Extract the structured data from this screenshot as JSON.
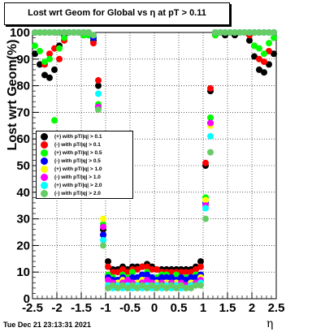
{
  "title": "Lost wrt Geom for Global vs  η at pT > 0.11",
  "timestamp": "Tue Dec 21 23:13:31 2021",
  "chart_data": {
    "type": "scatter",
    "title": "Lost wrt Geom for Global vs  η at pT > 0.11",
    "xlabel": "η",
    "ylabel": "Lost wrt Geom(%)",
    "xlim": [
      -2.5,
      2.5
    ],
    "ylim": [
      0,
      100
    ],
    "x_ticks": [
      "-2.5",
      "-2",
      "-1.5",
      "-1",
      "-0.5",
      "0",
      "0.5",
      "1",
      "1.5",
      "2",
      "2.5"
    ],
    "y_ticks": [
      "0",
      "10",
      "20",
      "30",
      "40",
      "50",
      "60",
      "70",
      "80",
      "90",
      "100"
    ],
    "grid": true,
    "legend_position": "left-middle",
    "series": [
      {
        "name": "(+) with pT/|q| > 0.1",
        "color": "#000000",
        "x": [
          -2.45,
          -2.35,
          -2.25,
          -2.15,
          -2.05,
          -1.95,
          -1.85,
          -1.75,
          -1.65,
          -1.55,
          -1.45,
          -1.35,
          -1.25,
          -1.15,
          -1.05,
          -0.95,
          -0.85,
          -0.75,
          -0.65,
          -0.55,
          -0.45,
          -0.35,
          -0.25,
          -0.15,
          -0.05,
          0.05,
          0.15,
          0.25,
          0.35,
          0.45,
          0.55,
          0.65,
          0.75,
          0.85,
          0.95,
          1.05,
          1.15,
          1.25,
          1.35,
          1.45,
          1.55,
          1.65,
          1.75,
          1.85,
          1.95,
          2.05,
          2.15,
          2.25,
          2.35,
          2.45
        ],
        "values": [
          92,
          88,
          84,
          83,
          86,
          95,
          99,
          100,
          100,
          100,
          99,
          100,
          97,
          80,
          26,
          14,
          11,
          11,
          12,
          11,
          12,
          12,
          12,
          13,
          12,
          11,
          11,
          11,
          11,
          11,
          11,
          11,
          11,
          12,
          14,
          50,
          78,
          100,
          100,
          99,
          100,
          99,
          100,
          100,
          97,
          91,
          86,
          85,
          88,
          92
        ]
      },
      {
        "name": "(-) with pT/|q| > 0.1",
        "color": "#ff0000",
        "x": [
          -2.45,
          -2.35,
          -2.25,
          -2.15,
          -2.05,
          -1.95,
          -1.85,
          -1.75,
          -1.65,
          -1.55,
          -1.45,
          -1.35,
          -1.25,
          -1.15,
          -1.05,
          -0.95,
          -0.85,
          -0.75,
          -0.65,
          -0.55,
          -0.45,
          -0.35,
          -0.25,
          -0.15,
          -0.05,
          0.05,
          0.15,
          0.25,
          0.35,
          0.45,
          0.55,
          0.65,
          0.75,
          0.85,
          0.95,
          1.05,
          1.15,
          1.25,
          1.35,
          1.45,
          1.55,
          1.65,
          1.75,
          1.85,
          1.95,
          2.05,
          2.15,
          2.25,
          2.35,
          2.45
        ],
        "values": [
          100,
          100,
          88,
          92,
          94,
          90,
          97,
          100,
          100,
          100,
          100,
          99,
          96,
          82,
          24,
          12,
          10,
          10,
          11,
          10,
          11,
          11,
          12,
          12,
          11,
          11,
          10,
          10,
          10,
          10,
          10,
          10,
          10,
          11,
          12,
          51,
          79,
          99,
          100,
          100,
          100,
          100,
          100,
          100,
          99,
          95,
          90,
          89,
          93,
          100
        ]
      },
      {
        "name": "(+) with pT/|q| > 0.5",
        "color": "#00ff00",
        "x": [
          -2.45,
          -2.35,
          -2.25,
          -2.15,
          -2.05,
          -1.95,
          -1.85,
          -1.75,
          -1.65,
          -1.55,
          -1.45,
          -1.35,
          -1.25,
          -1.15,
          -1.05,
          -0.95,
          -0.85,
          -0.75,
          -0.65,
          -0.55,
          -0.45,
          -0.35,
          -0.25,
          -0.15,
          -0.05,
          0.05,
          0.15,
          0.25,
          0.35,
          0.45,
          0.55,
          0.65,
          0.75,
          0.85,
          0.95,
          1.05,
          1.15,
          1.25,
          1.35,
          1.45,
          1.55,
          1.65,
          1.75,
          1.85,
          1.95,
          2.05,
          2.15,
          2.25,
          2.35,
          2.45
        ],
        "values": [
          95,
          93,
          89,
          90,
          67,
          94,
          98,
          100,
          100,
          100,
          99,
          99,
          98,
          73,
          28,
          9,
          8,
          7,
          9,
          8,
          10,
          8,
          9,
          10,
          8,
          8,
          9,
          9,
          8,
          9,
          8,
          8,
          8,
          9,
          9,
          38,
          68,
          99,
          100,
          100,
          100,
          100,
          100,
          100,
          100,
          95,
          94,
          92,
          96,
          98
        ]
      },
      {
        "name": "(-) with pT/|q| > 0.5",
        "color": "#0000ff",
        "x": [
          -2.45,
          -2.35,
          -2.25,
          -2.15,
          -2.05,
          -1.95,
          -1.85,
          -1.75,
          -1.65,
          -1.55,
          -1.45,
          -1.35,
          -1.25,
          -1.15,
          -1.05,
          -0.95,
          -0.85,
          -0.75,
          -0.65,
          -0.55,
          -0.45,
          -0.35,
          -0.25,
          -0.15,
          -0.05,
          0.05,
          0.15,
          0.25,
          0.35,
          0.45,
          0.55,
          0.65,
          0.75,
          0.85,
          0.95,
          1.05,
          1.15,
          1.25,
          1.35,
          1.45,
          1.55,
          1.65,
          1.75,
          1.85,
          1.95,
          2.05,
          2.15,
          2.25,
          2.35,
          2.45
        ],
        "values": [
          100,
          100,
          100,
          100,
          100,
          100,
          100,
          100,
          100,
          100,
          100,
          100,
          98,
          72,
          24,
          8,
          7,
          7,
          8,
          7,
          8,
          8,
          9,
          9,
          8,
          7,
          8,
          8,
          8,
          7,
          8,
          7,
          8,
          8,
          9,
          36,
          66,
          100,
          100,
          100,
          100,
          100,
          100,
          100,
          100,
          100,
          100,
          100,
          100,
          100
        ]
      },
      {
        "name": "(+) with pT/|q| > 1.0",
        "color": "#ffff00",
        "x": [
          -2.45,
          -2.35,
          -2.25,
          -2.15,
          -2.05,
          -1.95,
          -1.85,
          -1.75,
          -1.65,
          -1.55,
          -1.45,
          -1.35,
          -1.25,
          -1.15,
          -1.05,
          -0.95,
          -0.85,
          -0.75,
          -0.65,
          -0.55,
          -0.45,
          -0.35,
          -0.25,
          -0.15,
          -0.05,
          0.05,
          0.15,
          0.25,
          0.35,
          0.45,
          0.55,
          0.65,
          0.75,
          0.85,
          0.95,
          1.05,
          1.15,
          1.25,
          1.35,
          1.45,
          1.55,
          1.65,
          1.75,
          1.85,
          1.95,
          2.05,
          2.15,
          2.25,
          2.35,
          2.45
        ],
        "values": [
          100,
          100,
          100,
          100,
          100,
          100,
          100,
          100,
          100,
          100,
          100,
          100,
          99,
          71,
          30,
          6,
          5,
          6,
          7,
          6,
          5,
          6,
          7,
          6,
          5,
          6,
          5,
          6,
          5,
          6,
          5,
          5,
          6,
          6,
          8,
          37,
          65,
          100,
          100,
          100,
          100,
          100,
          100,
          100,
          100,
          100,
          100,
          100,
          100,
          100
        ]
      },
      {
        "name": "(-) with pT/|q| > 1.0",
        "color": "#ff00ff",
        "x": [
          -2.45,
          -2.35,
          -2.25,
          -2.15,
          -2.05,
          -1.95,
          -1.85,
          -1.75,
          -1.65,
          -1.55,
          -1.45,
          -1.35,
          -1.25,
          -1.15,
          -1.05,
          -0.95,
          -0.85,
          -0.75,
          -0.65,
          -0.55,
          -0.45,
          -0.35,
          -0.25,
          -0.15,
          -0.05,
          0.05,
          0.15,
          0.25,
          0.35,
          0.45,
          0.55,
          0.65,
          0.75,
          0.85,
          0.95,
          1.05,
          1.15,
          1.25,
          1.35,
          1.45,
          1.55,
          1.65,
          1.75,
          1.85,
          1.95,
          2.05,
          2.15,
          2.25,
          2.35,
          2.45
        ],
        "values": [
          100,
          100,
          100,
          100,
          100,
          100,
          100,
          100,
          100,
          100,
          100,
          100,
          99,
          72,
          27,
          7,
          6,
          5,
          6,
          7,
          6,
          5,
          6,
          7,
          6,
          5,
          6,
          5,
          6,
          5,
          6,
          5,
          5,
          6,
          7,
          35,
          66,
          100,
          100,
          100,
          100,
          100,
          100,
          100,
          100,
          100,
          100,
          100,
          100,
          100
        ]
      },
      {
        "name": "(+) with pT/|q| > 2.0",
        "color": "#00ffff",
        "x": [
          -2.45,
          -2.35,
          -2.25,
          -2.15,
          -2.05,
          -1.95,
          -1.85,
          -1.75,
          -1.65,
          -1.55,
          -1.45,
          -1.35,
          -1.25,
          -1.15,
          -1.05,
          -0.95,
          -0.85,
          -0.75,
          -0.65,
          -0.55,
          -0.45,
          -0.35,
          -0.25,
          -0.15,
          -0.05,
          0.05,
          0.15,
          0.25,
          0.35,
          0.45,
          0.55,
          0.65,
          0.75,
          0.85,
          0.95,
          1.05,
          1.15,
          1.25,
          1.35,
          1.45,
          1.55,
          1.65,
          1.75,
          1.85,
          1.95,
          2.05,
          2.15,
          2.25,
          2.35,
          2.45
        ],
        "values": [
          100,
          100,
          100,
          100,
          100,
          100,
          100,
          100,
          100,
          100,
          100,
          100,
          99,
          77,
          22,
          5,
          4,
          5,
          4,
          5,
          4,
          5,
          4,
          5,
          4,
          5,
          4,
          5,
          4,
          5,
          4,
          4,
          5,
          5,
          6,
          34,
          61,
          100,
          100,
          100,
          100,
          100,
          100,
          100,
          100,
          100,
          100,
          100,
          100,
          100
        ]
      },
      {
        "name": "(-) with pT/|q| > 2.0",
        "color": "#66cc66",
        "x": [
          -2.45,
          -2.35,
          -2.25,
          -2.15,
          -2.05,
          -1.95,
          -1.85,
          -1.75,
          -1.65,
          -1.55,
          -1.45,
          -1.35,
          -1.25,
          -1.15,
          -1.05,
          -0.95,
          -0.85,
          -0.75,
          -0.65,
          -0.55,
          -0.45,
          -0.35,
          -0.25,
          -0.15,
          -0.05,
          0.05,
          0.15,
          0.25,
          0.35,
          0.45,
          0.55,
          0.65,
          0.75,
          0.85,
          0.95,
          1.05,
          1.15,
          1.25,
          1.35,
          1.45,
          1.55,
          1.65,
          1.75,
          1.85,
          1.95,
          2.05,
          2.15,
          2.25,
          2.35,
          2.45
        ],
        "values": [
          100,
          100,
          100,
          100,
          100,
          100,
          100,
          100,
          100,
          100,
          100,
          100,
          99,
          71,
          20,
          4,
          5,
          4,
          5,
          4,
          5,
          4,
          5,
          4,
          5,
          4,
          5,
          4,
          5,
          4,
          5,
          4,
          4,
          5,
          5,
          30,
          55,
          100,
          100,
          100,
          100,
          100,
          100,
          100,
          100,
          100,
          100,
          100,
          100,
          100
        ]
      }
    ]
  }
}
